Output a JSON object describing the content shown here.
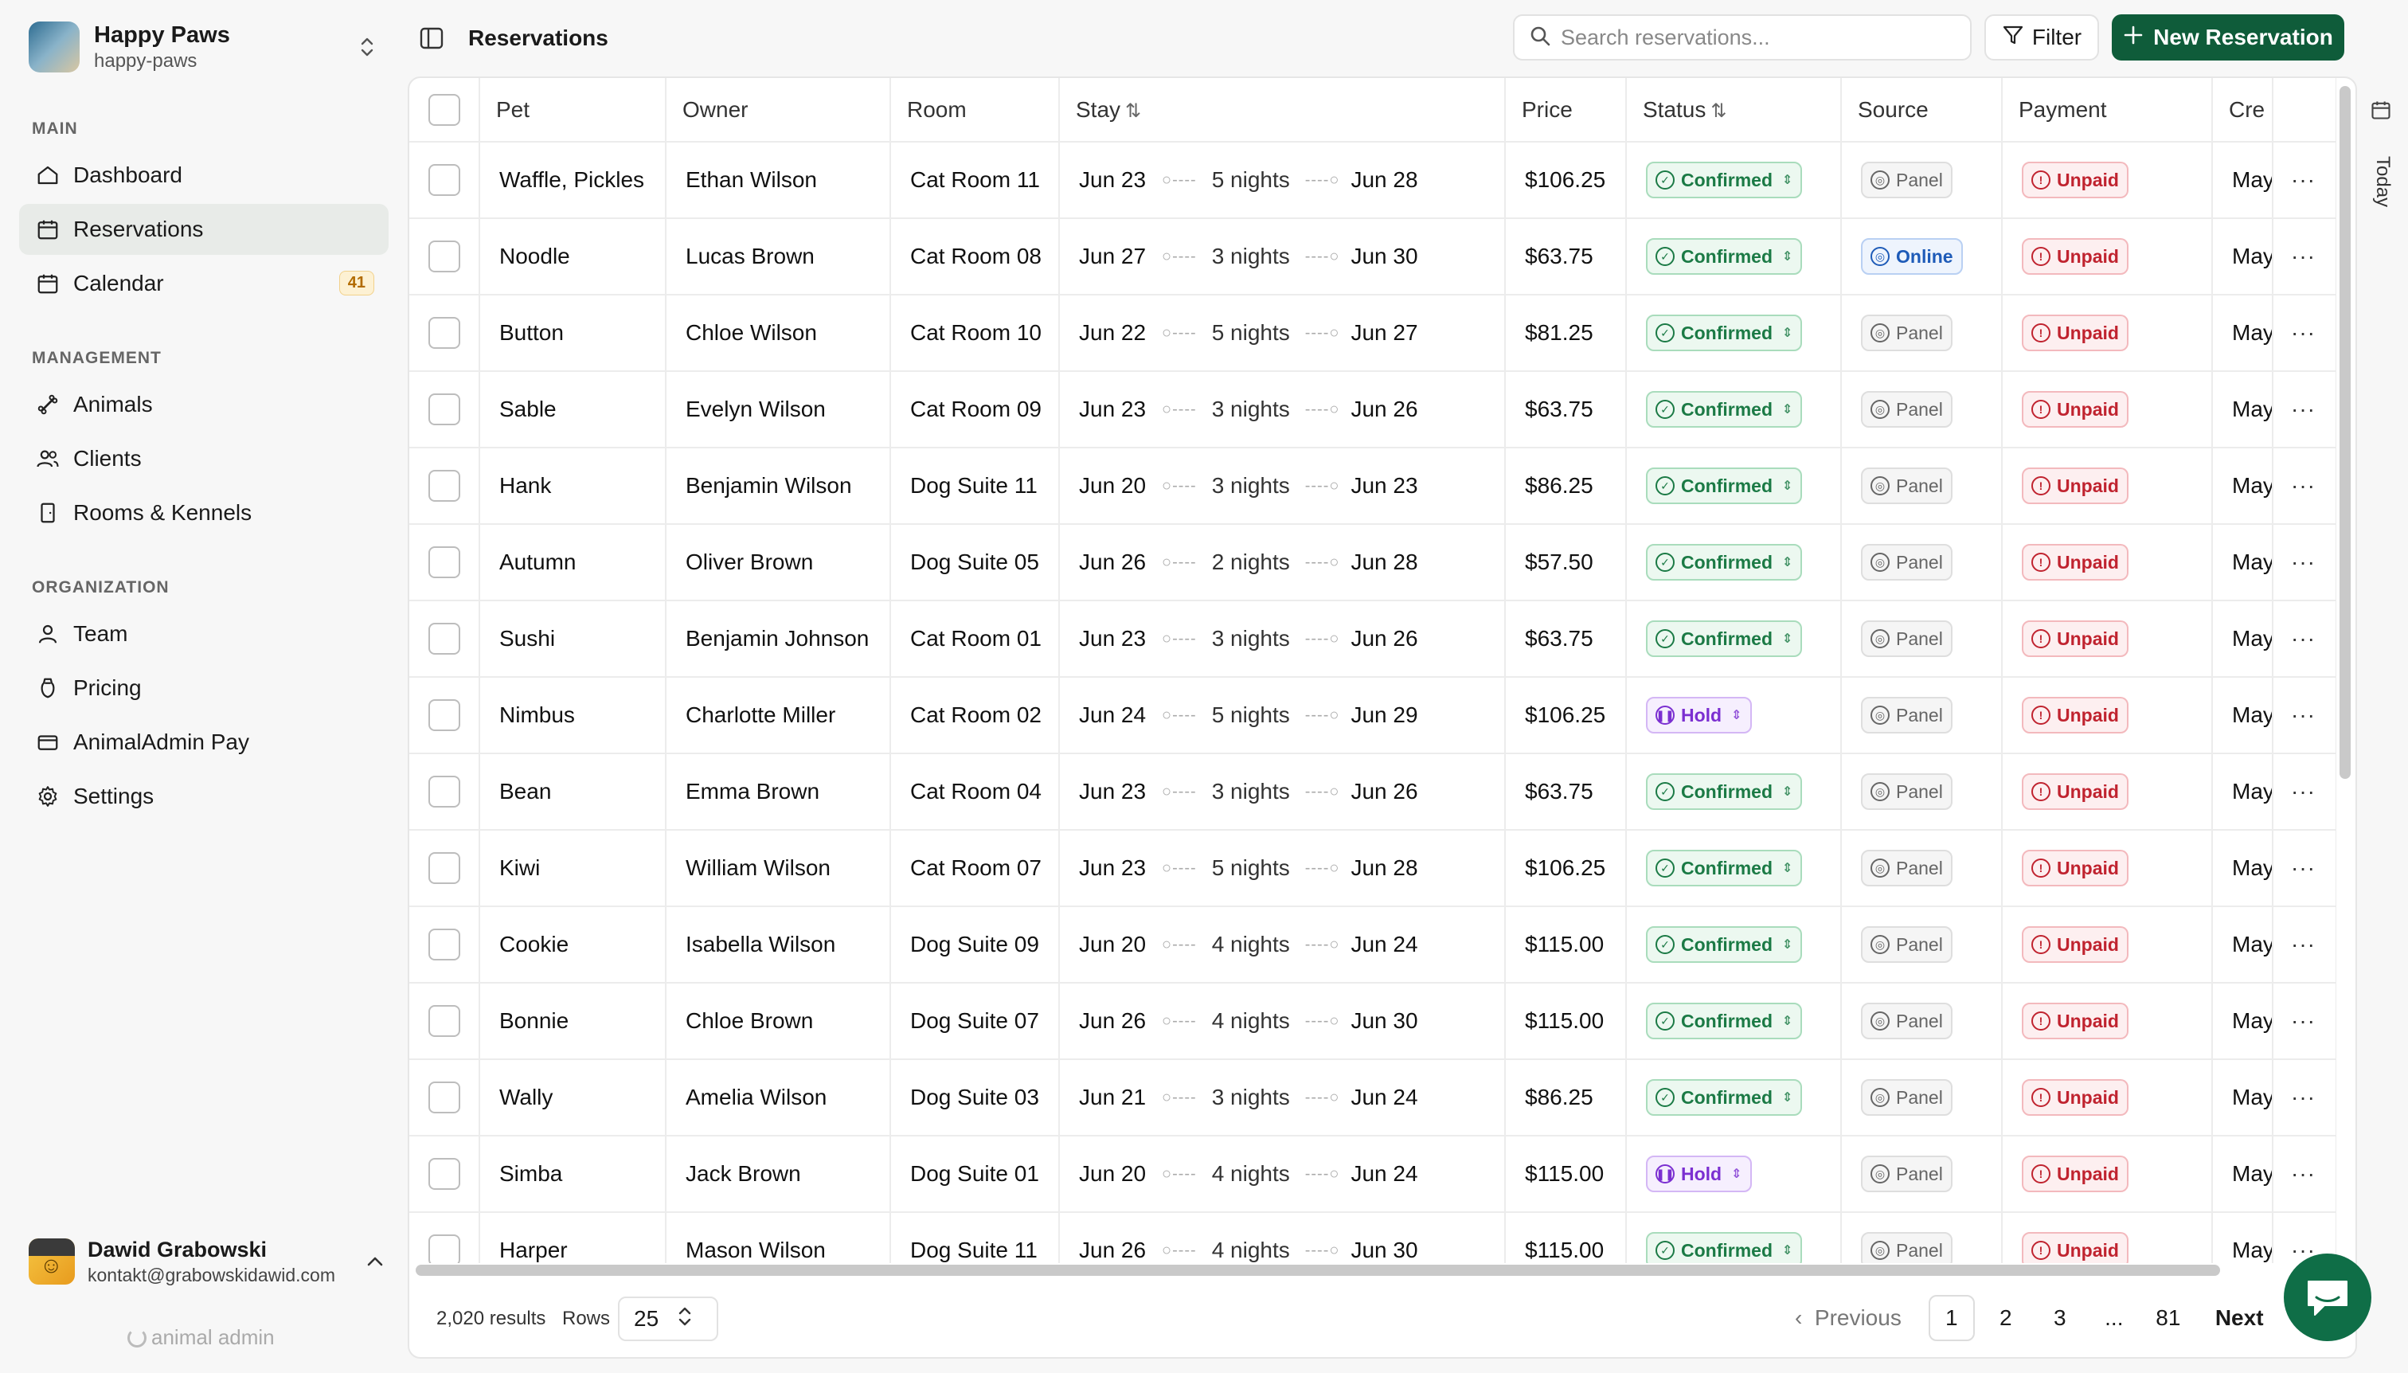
{
  "org": {
    "name": "Happy Paws",
    "slug": "happy-paws"
  },
  "sidebar": {
    "sections": [
      {
        "label": "MAIN"
      },
      {
        "label": "MANAGEMENT"
      },
      {
        "label": "ORGANIZATION"
      }
    ],
    "items": [
      {
        "label": "Dashboard",
        "icon": "home-icon"
      },
      {
        "label": "Reservations",
        "icon": "calendar-icon",
        "active": true
      },
      {
        "label": "Calendar",
        "icon": "calendar-icon",
        "badge": "41"
      },
      {
        "label": "Animals",
        "icon": "bone-icon"
      },
      {
        "label": "Clients",
        "icon": "users-icon"
      },
      {
        "label": "Rooms & Kennels",
        "icon": "door-icon"
      },
      {
        "label": "Team",
        "icon": "user-icon"
      },
      {
        "label": "Pricing",
        "icon": "tag-icon"
      },
      {
        "label": "AnimalAdmin Pay",
        "icon": "card-icon"
      },
      {
        "label": "Settings",
        "icon": "gear-icon"
      }
    ]
  },
  "user": {
    "name": "Dawid Grabowski",
    "email": "kontakt@grabowskidawid.com"
  },
  "brand_footer": "animal admin",
  "header": {
    "title": "Reservations",
    "search_placeholder": "Search reservations...",
    "filter_label": "Filter",
    "new_label": "New Reservation",
    "today_label": "Today"
  },
  "table": {
    "columns": [
      "Pet",
      "Owner",
      "Room",
      "Stay",
      "Price",
      "Status",
      "Source",
      "Payment",
      "Cre"
    ],
    "rows": [
      {
        "pet": "Waffle, Pickles",
        "owner": "Ethan Wilson",
        "room": "Cat Room 11",
        "start": "Jun 23",
        "nights": "5 nights",
        "end": "Jun 28",
        "price": "$106.25",
        "status": "Confirmed",
        "source": "Panel",
        "payment": "Unpaid",
        "created": "May"
      },
      {
        "pet": "Noodle",
        "owner": "Lucas Brown",
        "room": "Cat Room 08",
        "start": "Jun 27",
        "nights": "3 nights",
        "end": "Jun 30",
        "price": "$63.75",
        "status": "Confirmed",
        "source": "Online",
        "payment": "Unpaid",
        "created": "May"
      },
      {
        "pet": "Button",
        "owner": "Chloe Wilson",
        "room": "Cat Room 10",
        "start": "Jun 22",
        "nights": "5 nights",
        "end": "Jun 27",
        "price": "$81.25",
        "status": "Confirmed",
        "source": "Panel",
        "payment": "Unpaid",
        "created": "May"
      },
      {
        "pet": "Sable",
        "owner": "Evelyn Wilson",
        "room": "Cat Room 09",
        "start": "Jun 23",
        "nights": "3 nights",
        "end": "Jun 26",
        "price": "$63.75",
        "status": "Confirmed",
        "source": "Panel",
        "payment": "Unpaid",
        "created": "May"
      },
      {
        "pet": "Hank",
        "owner": "Benjamin Wilson",
        "room": "Dog Suite 11",
        "start": "Jun 20",
        "nights": "3 nights",
        "end": "Jun 23",
        "price": "$86.25",
        "status": "Confirmed",
        "source": "Panel",
        "payment": "Unpaid",
        "created": "May"
      },
      {
        "pet": "Autumn",
        "owner": "Oliver Brown",
        "room": "Dog Suite 05",
        "start": "Jun 26",
        "nights": "2 nights",
        "end": "Jun 28",
        "price": "$57.50",
        "status": "Confirmed",
        "source": "Panel",
        "payment": "Unpaid",
        "created": "May"
      },
      {
        "pet": "Sushi",
        "owner": "Benjamin Johnson",
        "room": "Cat Room 01",
        "start": "Jun 23",
        "nights": "3 nights",
        "end": "Jun 26",
        "price": "$63.75",
        "status": "Confirmed",
        "source": "Panel",
        "payment": "Unpaid",
        "created": "May"
      },
      {
        "pet": "Nimbus",
        "owner": "Charlotte Miller",
        "room": "Cat Room 02",
        "start": "Jun 24",
        "nights": "5 nights",
        "end": "Jun 29",
        "price": "$106.25",
        "status": "Hold",
        "source": "Panel",
        "payment": "Unpaid",
        "created": "May"
      },
      {
        "pet": "Bean",
        "owner": "Emma Brown",
        "room": "Cat Room 04",
        "start": "Jun 23",
        "nights": "3 nights",
        "end": "Jun 26",
        "price": "$63.75",
        "status": "Confirmed",
        "source": "Panel",
        "payment": "Unpaid",
        "created": "May"
      },
      {
        "pet": "Kiwi",
        "owner": "William Wilson",
        "room": "Cat Room 07",
        "start": "Jun 23",
        "nights": "5 nights",
        "end": "Jun 28",
        "price": "$106.25",
        "status": "Confirmed",
        "source": "Panel",
        "payment": "Unpaid",
        "created": "May"
      },
      {
        "pet": "Cookie",
        "owner": "Isabella Wilson",
        "room": "Dog Suite 09",
        "start": "Jun 20",
        "nights": "4 nights",
        "end": "Jun 24",
        "price": "$115.00",
        "status": "Confirmed",
        "source": "Panel",
        "payment": "Unpaid",
        "created": "May"
      },
      {
        "pet": "Bonnie",
        "owner": "Chloe Brown",
        "room": "Dog Suite 07",
        "start": "Jun 26",
        "nights": "4 nights",
        "end": "Jun 30",
        "price": "$115.00",
        "status": "Confirmed",
        "source": "Panel",
        "payment": "Unpaid",
        "created": "May"
      },
      {
        "pet": "Wally",
        "owner": "Amelia Wilson",
        "room": "Dog Suite 03",
        "start": "Jun 21",
        "nights": "3 nights",
        "end": "Jun 24",
        "price": "$86.25",
        "status": "Confirmed",
        "source": "Panel",
        "payment": "Unpaid",
        "created": "May"
      },
      {
        "pet": "Simba",
        "owner": "Jack Brown",
        "room": "Dog Suite 01",
        "start": "Jun 20",
        "nights": "4 nights",
        "end": "Jun 24",
        "price": "$115.00",
        "status": "Hold",
        "source": "Panel",
        "payment": "Unpaid",
        "created": "May"
      },
      {
        "pet": "Harper",
        "owner": "Mason Wilson",
        "room": "Dog Suite 11",
        "start": "Jun 26",
        "nights": "4 nights",
        "end": "Jun 30",
        "price": "$115.00",
        "status": "Confirmed",
        "source": "Panel",
        "payment": "Unpaid",
        "created": "May"
      }
    ]
  },
  "footer": {
    "results": "2,020 results",
    "rows_label": "Rows",
    "rows_value": "25",
    "prev_label": "Previous",
    "pages": [
      "1",
      "2",
      "3",
      "...",
      "81"
    ],
    "current_page": "1",
    "next_label": "Next"
  },
  "colors": {
    "accent": "#0f5c3a",
    "confirmed": "#1b7a45",
    "hold": "#7b2fd1",
    "unpaid": "#c0232f",
    "online": "#1e5bb8"
  }
}
